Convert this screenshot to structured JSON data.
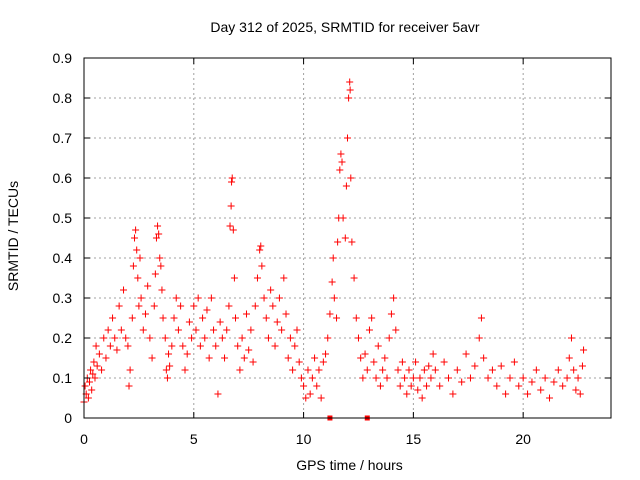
{
  "chart_data": {
    "type": "scatter",
    "title": "Day 312 of 2025, SRMTID for receiver 5avr",
    "xlabel": "GPS time / hours",
    "ylabel": "SRMTID / TECUs",
    "xlim": [
      0,
      24
    ],
    "ylim": [
      0,
      0.9
    ],
    "x_ticks": [
      0,
      5,
      10,
      15,
      20
    ],
    "x_tick_labels": [
      "0",
      "5",
      "10",
      "15",
      "20"
    ],
    "y_ticks": [
      0,
      0.1,
      0.2,
      0.3,
      0.4,
      0.5,
      0.6,
      0.7,
      0.8,
      0.9
    ],
    "y_tick_labels": [
      "0",
      "0.1",
      "0.2",
      "0.3",
      "0.4",
      "0.5",
      "0.6",
      "0.7",
      "0.8",
      "0.9"
    ],
    "grid": true,
    "marker": "plus",
    "series": [
      {
        "name": "SRMTID",
        "color": "#ff0000",
        "points": [
          [
            0.0,
            0.04
          ],
          [
            0.05,
            0.08
          ],
          [
            0.1,
            0.06
          ],
          [
            0.15,
            0.1
          ],
          [
            0.2,
            0.05
          ],
          [
            0.25,
            0.09
          ],
          [
            0.3,
            0.12
          ],
          [
            0.35,
            0.07
          ],
          [
            0.4,
            0.11
          ],
          [
            0.45,
            0.14
          ],
          [
            0.5,
            0.1
          ],
          [
            0.55,
            0.18
          ],
          [
            0.6,
            0.13
          ],
          [
            0.7,
            0.16
          ],
          [
            0.8,
            0.12
          ],
          [
            0.9,
            0.2
          ],
          [
            1.0,
            0.15
          ],
          [
            1.1,
            0.22
          ],
          [
            1.2,
            0.18
          ],
          [
            1.3,
            0.25
          ],
          [
            1.4,
            0.2
          ],
          [
            1.5,
            0.17
          ],
          [
            1.6,
            0.28
          ],
          [
            1.7,
            0.22
          ],
          [
            1.8,
            0.32
          ],
          [
            1.9,
            0.2
          ],
          [
            2.0,
            0.18
          ],
          [
            2.05,
            0.08
          ],
          [
            2.1,
            0.12
          ],
          [
            2.2,
            0.25
          ],
          [
            2.25,
            0.38
          ],
          [
            2.3,
            0.45
          ],
          [
            2.35,
            0.47
          ],
          [
            2.4,
            0.42
          ],
          [
            2.45,
            0.35
          ],
          [
            2.5,
            0.28
          ],
          [
            2.55,
            0.4
          ],
          [
            2.6,
            0.3
          ],
          [
            2.7,
            0.22
          ],
          [
            2.8,
            0.26
          ],
          [
            2.9,
            0.33
          ],
          [
            3.0,
            0.2
          ],
          [
            3.1,
            0.15
          ],
          [
            3.2,
            0.28
          ],
          [
            3.25,
            0.36
          ],
          [
            3.3,
            0.45
          ],
          [
            3.35,
            0.48
          ],
          [
            3.4,
            0.46
          ],
          [
            3.45,
            0.4
          ],
          [
            3.5,
            0.38
          ],
          [
            3.55,
            0.32
          ],
          [
            3.6,
            0.25
          ],
          [
            3.7,
            0.2
          ],
          [
            3.75,
            0.12
          ],
          [
            3.8,
            0.1
          ],
          [
            3.85,
            0.16
          ],
          [
            3.9,
            0.13
          ],
          [
            4.0,
            0.18
          ],
          [
            4.1,
            0.25
          ],
          [
            4.2,
            0.3
          ],
          [
            4.3,
            0.22
          ],
          [
            4.4,
            0.28
          ],
          [
            4.5,
            0.18
          ],
          [
            4.6,
            0.12
          ],
          [
            4.7,
            0.16
          ],
          [
            4.8,
            0.24
          ],
          [
            4.9,
            0.2
          ],
          [
            5.0,
            0.28
          ],
          [
            5.1,
            0.22
          ],
          [
            5.2,
            0.3
          ],
          [
            5.3,
            0.18
          ],
          [
            5.4,
            0.25
          ],
          [
            5.5,
            0.2
          ],
          [
            5.6,
            0.27
          ],
          [
            5.7,
            0.15
          ],
          [
            5.8,
            0.3
          ],
          [
            5.9,
            0.22
          ],
          [
            6.0,
            0.18
          ],
          [
            6.1,
            0.06
          ],
          [
            6.2,
            0.24
          ],
          [
            6.3,
            0.2
          ],
          [
            6.4,
            0.15
          ],
          [
            6.5,
            0.22
          ],
          [
            6.6,
            0.28
          ],
          [
            6.65,
            0.48
          ],
          [
            6.7,
            0.53
          ],
          [
            6.72,
            0.59
          ],
          [
            6.75,
            0.6
          ],
          [
            6.8,
            0.47
          ],
          [
            6.85,
            0.35
          ],
          [
            6.9,
            0.25
          ],
          [
            7.0,
            0.18
          ],
          [
            7.1,
            0.12
          ],
          [
            7.2,
            0.2
          ],
          [
            7.3,
            0.15
          ],
          [
            7.4,
            0.26
          ],
          [
            7.5,
            0.17
          ],
          [
            7.6,
            0.22
          ],
          [
            7.7,
            0.14
          ],
          [
            7.8,
            0.28
          ],
          [
            7.9,
            0.35
          ],
          [
            8.0,
            0.42
          ],
          [
            8.05,
            0.43
          ],
          [
            8.1,
            0.38
          ],
          [
            8.2,
            0.3
          ],
          [
            8.3,
            0.25
          ],
          [
            8.4,
            0.2
          ],
          [
            8.5,
            0.32
          ],
          [
            8.6,
            0.28
          ],
          [
            8.7,
            0.18
          ],
          [
            8.8,
            0.24
          ],
          [
            8.9,
            0.3
          ],
          [
            9.0,
            0.22
          ],
          [
            9.1,
            0.35
          ],
          [
            9.2,
            0.26
          ],
          [
            9.3,
            0.15
          ],
          [
            9.4,
            0.2
          ],
          [
            9.5,
            0.12
          ],
          [
            9.6,
            0.18
          ],
          [
            9.7,
            0.22
          ],
          [
            9.8,
            0.14
          ],
          [
            9.9,
            0.1
          ],
          [
            10.0,
            0.08
          ],
          [
            10.1,
            0.05
          ],
          [
            10.2,
            0.12
          ],
          [
            10.3,
            0.06
          ],
          [
            10.4,
            0.1
          ],
          [
            10.5,
            0.15
          ],
          [
            10.6,
            0.08
          ],
          [
            10.7,
            0.12
          ],
          [
            10.8,
            0.05
          ],
          [
            10.9,
            0.14
          ],
          [
            11.0,
            0.16
          ],
          [
            11.1,
            0.2
          ],
          [
            11.2,
            0.26
          ],
          [
            11.3,
            0.34
          ],
          [
            11.35,
            0.4
          ],
          [
            11.4,
            0.3
          ],
          [
            11.5,
            0.25
          ],
          [
            11.55,
            0.44
          ],
          [
            11.6,
            0.5
          ],
          [
            11.65,
            0.62
          ],
          [
            11.7,
            0.66
          ],
          [
            11.75,
            0.64
          ],
          [
            11.8,
            0.5
          ],
          [
            11.9,
            0.45
          ],
          [
            11.95,
            0.58
          ],
          [
            12.0,
            0.7
          ],
          [
            12.05,
            0.8
          ],
          [
            12.1,
            0.84
          ],
          [
            12.12,
            0.82
          ],
          [
            12.15,
            0.6
          ],
          [
            12.2,
            0.44
          ],
          [
            12.3,
            0.35
          ],
          [
            12.4,
            0.25
          ],
          [
            12.5,
            0.2
          ],
          [
            12.6,
            0.15
          ],
          [
            12.7,
            0.1
          ],
          [
            12.8,
            0.16
          ],
          [
            12.9,
            0.12
          ],
          [
            13.0,
            0.22
          ],
          [
            13.1,
            0.25
          ],
          [
            13.2,
            0.14
          ],
          [
            13.3,
            0.1
          ],
          [
            13.4,
            0.18
          ],
          [
            13.5,
            0.08
          ],
          [
            13.6,
            0.12
          ],
          [
            13.7,
            0.15
          ],
          [
            13.8,
            0.1
          ],
          [
            13.9,
            0.2
          ],
          [
            14.0,
            0.26
          ],
          [
            14.1,
            0.3
          ],
          [
            14.2,
            0.22
          ],
          [
            14.3,
            0.12
          ],
          [
            14.4,
            0.08
          ],
          [
            14.5,
            0.14
          ],
          [
            14.6,
            0.1
          ],
          [
            14.7,
            0.06
          ],
          [
            14.8,
            0.12
          ],
          [
            14.9,
            0.08
          ],
          [
            15.0,
            0.1
          ],
          [
            15.1,
            0.14
          ],
          [
            15.2,
            0.07
          ],
          [
            15.3,
            0.1
          ],
          [
            15.4,
            0.05
          ],
          [
            15.5,
            0.12
          ],
          [
            15.6,
            0.08
          ],
          [
            15.7,
            0.13
          ],
          [
            15.8,
            0.1
          ],
          [
            15.9,
            0.16
          ],
          [
            16.0,
            0.12
          ],
          [
            16.2,
            0.08
          ],
          [
            16.4,
            0.14
          ],
          [
            16.6,
            0.1
          ],
          [
            16.8,
            0.06
          ],
          [
            17.0,
            0.12
          ],
          [
            17.2,
            0.09
          ],
          [
            17.4,
            0.16
          ],
          [
            17.6,
            0.1
          ],
          [
            17.8,
            0.13
          ],
          [
            18.0,
            0.2
          ],
          [
            18.1,
            0.25
          ],
          [
            18.2,
            0.15
          ],
          [
            18.4,
            0.1
          ],
          [
            18.6,
            0.12
          ],
          [
            18.8,
            0.08
          ],
          [
            19.0,
            0.13
          ],
          [
            19.2,
            0.06
          ],
          [
            19.4,
            0.1
          ],
          [
            19.6,
            0.14
          ],
          [
            19.8,
            0.08
          ],
          [
            20.0,
            0.1
          ],
          [
            20.2,
            0.06
          ],
          [
            20.4,
            0.09
          ],
          [
            20.6,
            0.12
          ],
          [
            20.8,
            0.07
          ],
          [
            21.0,
            0.1
          ],
          [
            21.2,
            0.05
          ],
          [
            21.4,
            0.09
          ],
          [
            21.6,
            0.12
          ],
          [
            21.8,
            0.08
          ],
          [
            22.0,
            0.1
          ],
          [
            22.1,
            0.15
          ],
          [
            22.2,
            0.2
          ],
          [
            22.3,
            0.12
          ],
          [
            22.4,
            0.07
          ],
          [
            22.5,
            0.1
          ],
          [
            22.6,
            0.06
          ],
          [
            22.7,
            0.13
          ],
          [
            22.75,
            0.17
          ]
        ]
      }
    ],
    "baseline_markers": [
      [
        11.2,
        0.0
      ],
      [
        12.9,
        0.0
      ]
    ]
  }
}
